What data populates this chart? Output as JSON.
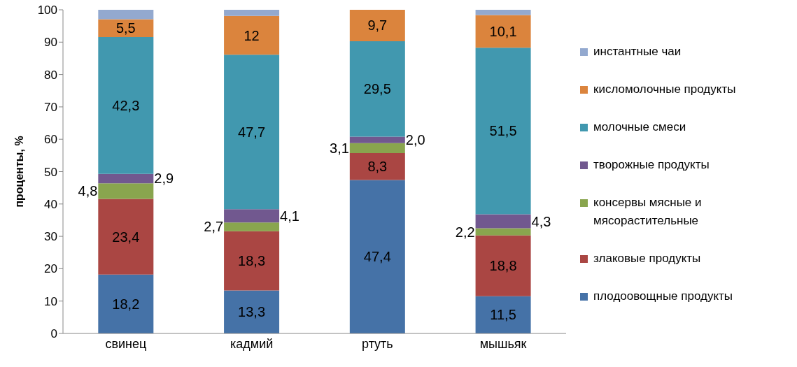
{
  "chart_data": {
    "type": "bar",
    "stacked": true,
    "ylabel": "проценты, %",
    "categories": [
      "свинец",
      "кадмий",
      "ртуть",
      "мышьяк"
    ],
    "ylim": [
      0,
      100
    ],
    "yticks": [
      0,
      10,
      20,
      30,
      40,
      50,
      60,
      70,
      80,
      90,
      100
    ],
    "grid": false,
    "legend": "right",
    "series": [
      {
        "name": "плодоовощные продукты",
        "color": "#4572a7",
        "values": [
          18.2,
          13.3,
          47.4,
          11.5
        ],
        "value_labels": [
          "18,2",
          "13,3",
          "47,4",
          "11,5"
        ]
      },
      {
        "name": "злаковые продукты",
        "color": "#aa4643",
        "values": [
          23.4,
          18.3,
          8.3,
          18.8
        ],
        "value_labels": [
          "23,4",
          "18,3",
          "8,3",
          "18,8"
        ]
      },
      {
        "name": "консервы мясные и мясорастительные",
        "color": "#89a54e",
        "values": [
          4.8,
          2.7,
          3.1,
          2.2
        ],
        "value_labels": [
          "4,8",
          "2,7",
          "3,1",
          "2,2"
        ]
      },
      {
        "name": "творожные продукты",
        "color": "#71588f",
        "values": [
          2.9,
          4.1,
          2.0,
          4.3
        ],
        "value_labels": [
          "2,9",
          "4,1",
          "2,0",
          "4,3"
        ]
      },
      {
        "name": "молочные смеси",
        "color": "#4198af",
        "values": [
          42.3,
          47.7,
          29.5,
          51.5
        ],
        "value_labels": [
          "42,3",
          "47,7",
          "29,5",
          "51,5"
        ]
      },
      {
        "name": "кисломолочные продукты",
        "color": "#db843d",
        "values": [
          5.5,
          12,
          9.7,
          10.1
        ],
        "value_labels": [
          "5,5",
          "12",
          "9,7",
          "10,1"
        ]
      },
      {
        "name": "инстантные чаи",
        "color": "#93a9cf",
        "values": [
          2.9,
          1.9,
          0,
          1.6
        ],
        "value_labels": [
          null,
          null,
          null,
          null
        ]
      }
    ]
  }
}
